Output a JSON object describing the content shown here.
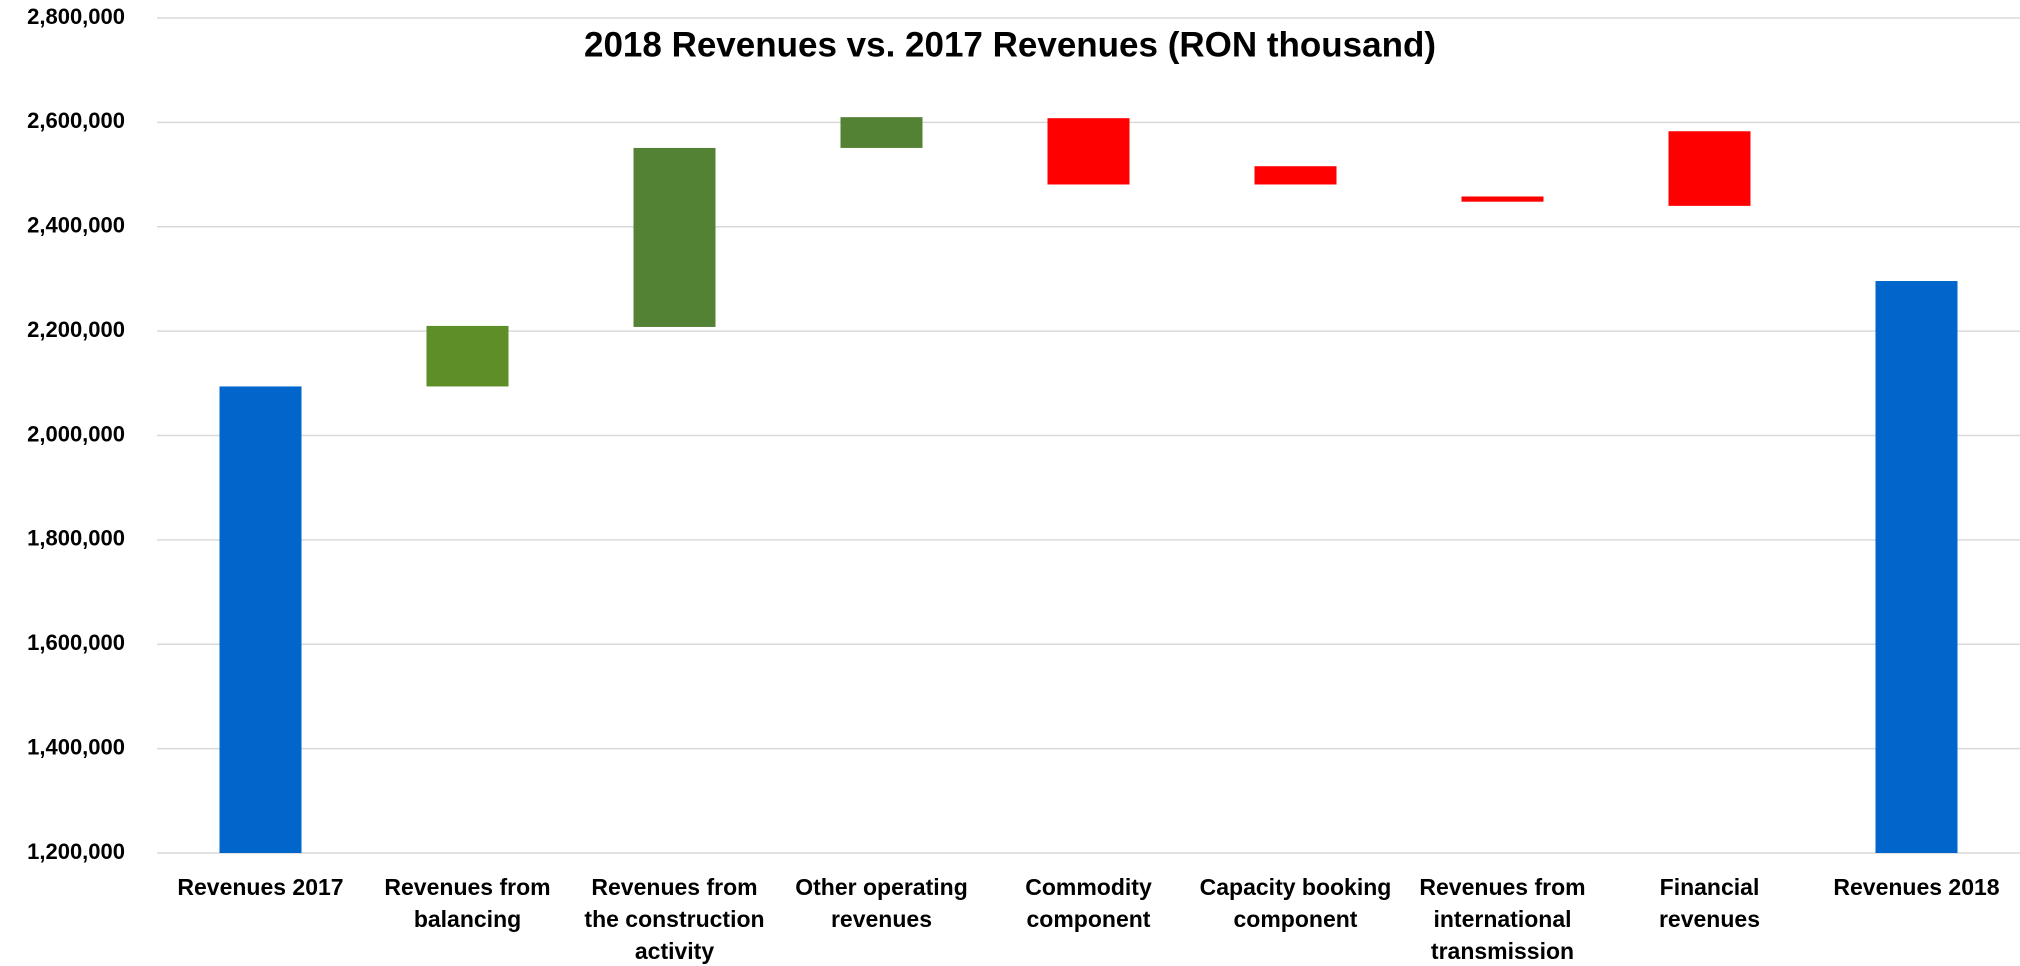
{
  "chart_data": {
    "type": "waterfall",
    "title": "2018 Revenues  vs. 2017 Revenues (RON thousand)",
    "categories": [
      "Revenues 2017",
      "Revenues from balancing",
      "Revenues from the construction activity",
      "Other operating revenues",
      "Commodity component",
      "Capacity booking component",
      "Revenues from international transmission",
      "Financial revenues",
      "Revenues 2018"
    ],
    "lows": [
      null,
      2094000,
      2208000,
      2551000,
      2481000,
      2481000,
      2448000,
      2440000,
      null
    ],
    "highs": [
      2094000,
      2210000,
      2551000,
      2610000,
      2608000,
      2516000,
      2458000,
      2583000,
      2296000
    ],
    "colors": [
      "#0066cc",
      "#5e8e27",
      "#548235",
      "#548235",
      "#ff0000",
      "#ff0000",
      "#ff0000",
      "#ff0000",
      "#0066cc"
    ],
    "ylim": [
      1200000,
      2800000
    ],
    "yticks": [
      {
        "value": 1200000,
        "label": "1,200,000"
      },
      {
        "value": 1400000,
        "label": "1,400,000"
      },
      {
        "value": 1600000,
        "label": "1,600,000"
      },
      {
        "value": 1800000,
        "label": "1,800,000"
      },
      {
        "value": 2000000,
        "label": "2,000,000"
      },
      {
        "value": 2200000,
        "label": "2,200,000"
      },
      {
        "value": 2400000,
        "label": "2,400,000"
      },
      {
        "value": 2600000,
        "label": "2,600,000"
      },
      {
        "value": 2800000,
        "label": "2,800,000"
      }
    ],
    "grid": true
  }
}
